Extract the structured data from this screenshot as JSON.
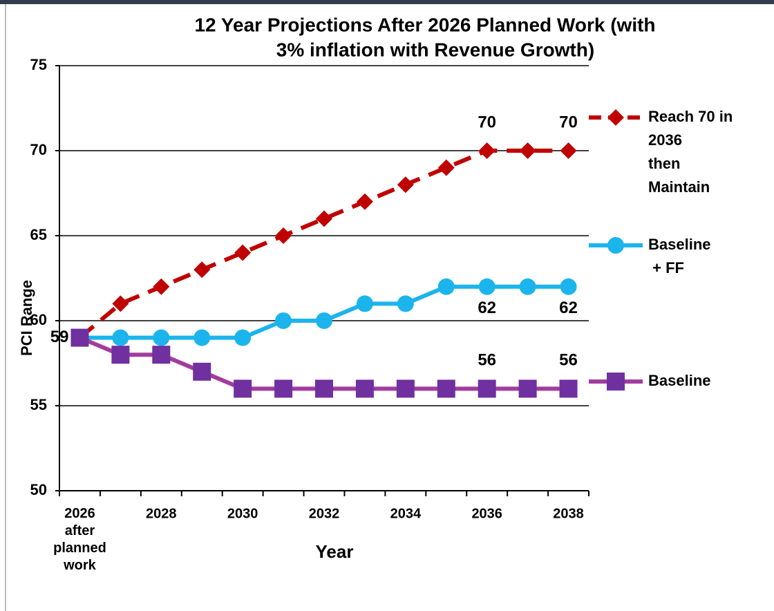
{
  "chart_data": {
    "type": "line",
    "title": [
      "12 Year Projections After 2026 Planned Work (with",
      "3% inflation with Revenue Growth)"
    ],
    "x_label": "Year",
    "y_label": "PCI Range",
    "categories": [
      "2026\nafter\nplanned\nwork",
      null,
      "2028",
      null,
      "2030",
      null,
      "2032",
      null,
      "2034",
      null,
      "2036",
      null,
      "2038"
    ],
    "ylim": [
      50,
      75
    ],
    "yticks": [
      50,
      55,
      60,
      65,
      70,
      75
    ],
    "grid": true,
    "legend": "right",
    "series": [
      {
        "name": "Reach 70 in\n2036\nthen\nMaintain",
        "color": "#c00000",
        "marker_color": "#c00000",
        "marker": "diamond",
        "dash": true,
        "label_position": "above",
        "values": [
          59,
          61,
          62,
          63,
          64,
          65,
          66,
          67,
          68,
          69,
          70,
          70,
          70
        ],
        "value_labels": [
          null,
          null,
          null,
          null,
          null,
          null,
          null,
          null,
          null,
          null,
          "70",
          null,
          "70"
        ]
      },
      {
        "name": "Baseline\n + FF",
        "color": "#1cb4ec",
        "marker_color": "#1cb4ec",
        "marker": "circle",
        "dash": false,
        "label_position": "below",
        "values": [
          59,
          59,
          59,
          59,
          59,
          60,
          60,
          61,
          61,
          62,
          62,
          62,
          62
        ],
        "value_labels": [
          null,
          null,
          null,
          null,
          null,
          null,
          null,
          null,
          null,
          null,
          "62",
          null,
          "62"
        ]
      },
      {
        "name": "Baseline",
        "color": "#a23c9e",
        "marker_color": "#7030a0",
        "marker": "square",
        "dash": false,
        "label_position": "above",
        "values": [
          59,
          58,
          58,
          57,
          56,
          56,
          56,
          56,
          56,
          56,
          56,
          56,
          56
        ],
        "value_labels": [
          "59",
          null,
          null,
          null,
          null,
          null,
          null,
          null,
          null,
          null,
          "56",
          null,
          "56"
        ]
      }
    ]
  }
}
